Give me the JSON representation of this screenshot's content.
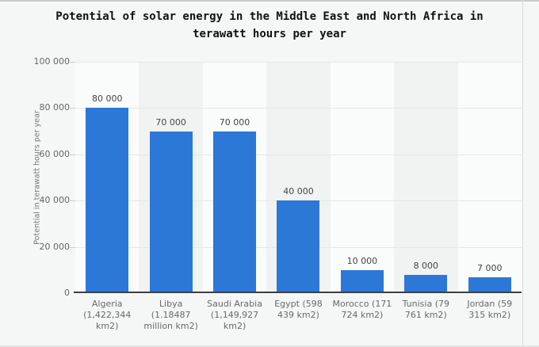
{
  "chart_data": {
    "type": "bar",
    "title": "Potential of solar energy in the Middle East and North Africa in terawatt hours per year",
    "title_lines": [
      "Potential of solar energy in the Middle East and North Africa in",
      "terawatt hours per year"
    ],
    "xlabel": "",
    "ylabel": "Potential in terawatt hours per year",
    "ylim": [
      0,
      100000
    ],
    "ytick_step": 20000,
    "yticks": [
      {
        "value": 100000,
        "label": "100 000"
      },
      {
        "value": 80000,
        "label": "80 000"
      },
      {
        "value": 60000,
        "label": "60 000"
      },
      {
        "value": 40000,
        "label": "40 000"
      },
      {
        "value": 20000,
        "label": "20 000"
      },
      {
        "value": 0,
        "label": "0"
      }
    ],
    "grid": "horizontal",
    "legend": "none",
    "categories": [
      "Algeria (1,422,344 km2)",
      "Libya (1.18487 million km2)",
      "Saudi Arabia (1,149,927 km2)",
      "Egypt (598 439 km2)",
      "Morocco (171 724 km2)",
      "Tunisia (79 761 km2)",
      "Jordan (59 315 km2)"
    ],
    "values": [
      80000,
      70000,
      70000,
      40000,
      10000,
      8000,
      7000
    ],
    "value_labels": [
      "80 000",
      "70 000",
      "70 000",
      "40 000",
      "10 000",
      "8 000",
      "7 000"
    ],
    "colors": {
      "bar": "#2b78d7",
      "page_background": "#f5f6f6",
      "band_light": "#fafbfb",
      "band_dark": "#f1f2f2",
      "gridline": "#e6e6e6",
      "axis_line": "#3f3f3f",
      "title_text": "#111111",
      "tick_text": "#666668",
      "value_text": "#454545",
      "category_text": "#68696b",
      "ylabel_text": "#77787a"
    }
  }
}
